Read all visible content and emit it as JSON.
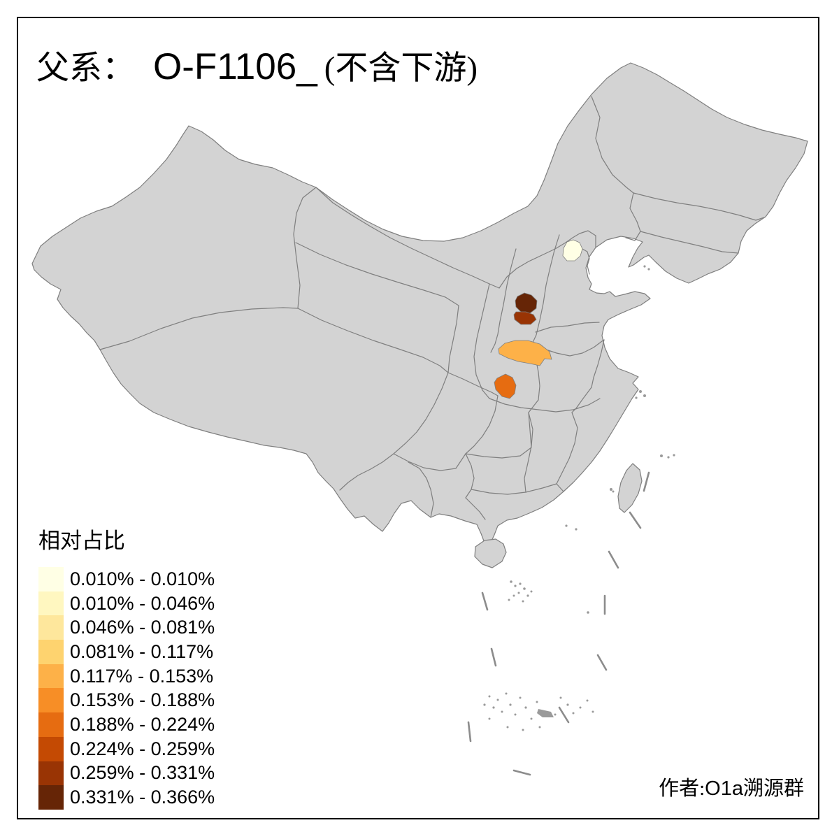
{
  "title": {
    "lineage_label": "父系：",
    "haplogroup": "O-F1106_",
    "qualifier": "(不含下游)"
  },
  "legend": {
    "title": "相对占比",
    "classes": [
      {
        "range": "0.010% - 0.010%",
        "color": "#FFFFE5"
      },
      {
        "range": "0.010% - 0.046%",
        "color": "#FFF7C0"
      },
      {
        "range": "0.046% - 0.081%",
        "color": "#FEE79C"
      },
      {
        "range": "0.081% - 0.117%",
        "color": "#FED36F"
      },
      {
        "range": "0.117% - 0.153%",
        "color": "#FDB148"
      },
      {
        "range": "0.153% - 0.188%",
        "color": "#F78E26"
      },
      {
        "range": "0.188% - 0.224%",
        "color": "#E66C11"
      },
      {
        "range": "0.224% - 0.259%",
        "color": "#C44A03"
      },
      {
        "range": "0.259% - 0.331%",
        "color": "#993404"
      },
      {
        "range": "0.331% - 0.366%",
        "color": "#662506"
      }
    ]
  },
  "attribution": {
    "prefix": "作者:",
    "group_latin": "O1a",
    "group_zh": "溯源群"
  },
  "map_data": {
    "type": "choropleth",
    "land_color": "#D3D3D3",
    "border_color": "#7F7F7F",
    "sea_color": "#FFFFFF",
    "regions": [
      {
        "id": "beijing",
        "range": "0.010% - 0.010%",
        "color": "#FFFFE5"
      },
      {
        "id": "shanxi-south-upper",
        "range": "0.331% - 0.366%",
        "color": "#662506"
      },
      {
        "id": "shanxi-south-lower",
        "range": "0.259% - 0.331%",
        "color": "#993404"
      },
      {
        "id": "guanzhong-area",
        "range": "0.117% - 0.153%",
        "color": "#FDB148"
      },
      {
        "id": "shaanxi-south-area",
        "range": "0.188% - 0.224%",
        "color": "#E66C11"
      }
    ]
  }
}
